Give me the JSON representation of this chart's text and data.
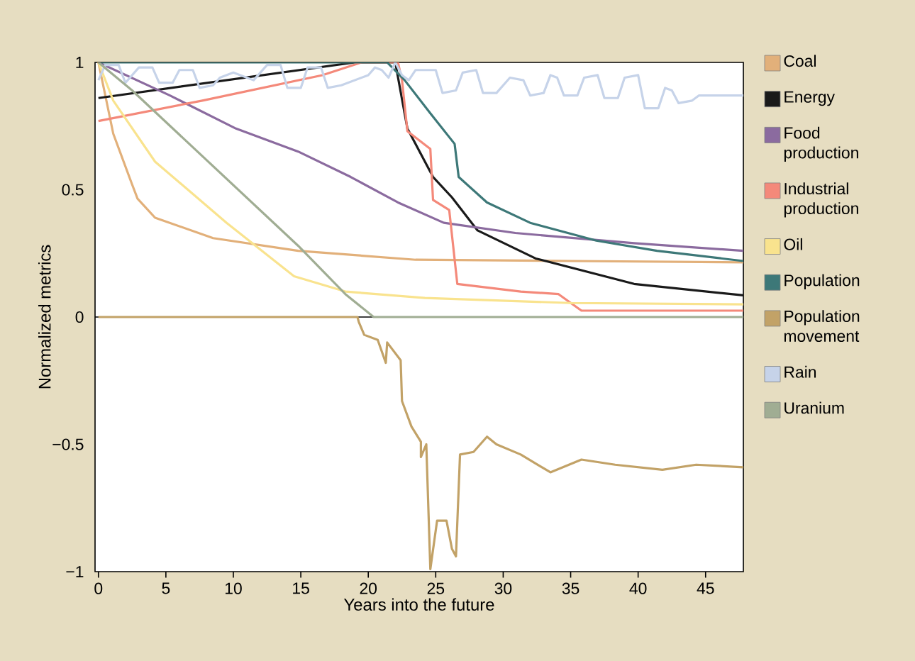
{
  "chart_data": {
    "type": "line",
    "xlabel": "Years into the future",
    "ylabel": "Normalized metrics",
    "xlim": [
      -0.25,
      47.8
    ],
    "ylim": [
      -1,
      1
    ],
    "xticks": [
      0,
      5,
      10,
      15,
      20,
      25,
      30,
      35,
      40,
      45
    ],
    "yticks": [
      {
        "value": -1,
        "label": "−1"
      },
      {
        "value": -0.5,
        "label": "−0.5"
      },
      0,
      0.5,
      1
    ],
    "grid": false,
    "legend": "right",
    "marker": "none",
    "line_style": "solid",
    "ref_lines": [
      {
        "axis": "y",
        "value": 0,
        "color": "#000000"
      }
    ],
    "series": [
      {
        "name": "Coal",
        "color": "#e2b07a",
        "x": [
          0,
          1.1,
          2.5,
          2.9,
          4.2,
          8.5,
          14.8,
          23.5,
          35,
          47.8
        ],
        "values": [
          1,
          0.72,
          0.52,
          0.465,
          0.39,
          0.31,
          0.26,
          0.225,
          0.22,
          0.215
        ]
      },
      {
        "name": "Energy",
        "color": "#1a1a1a",
        "x": [
          0,
          19,
          22,
          22.9,
          24.8,
          26.2,
          28.1,
          32.4,
          39.7,
          47.8
        ],
        "values": [
          0.86,
          1,
          1,
          0.74,
          0.55,
          0.47,
          0.34,
          0.23,
          0.13,
          0.085
        ]
      },
      {
        "name": "Food production",
        "color": "#8b6b9f",
        "x": [
          0,
          5.3,
          10.2,
          14.8,
          18.7,
          22.2,
          25.6,
          30.9,
          39.7,
          47.8
        ],
        "values": [
          1,
          0.87,
          0.74,
          0.65,
          0.55,
          0.45,
          0.37,
          0.33,
          0.29,
          0.26
        ]
      },
      {
        "name": "Industrial production",
        "color": "#f4897a",
        "x": [
          0,
          7.7,
          16.6,
          19.5,
          22.2,
          22.5,
          22.9,
          24.6,
          24.8,
          26,
          26.6,
          31.3,
          34.1,
          35.8,
          47.8
        ],
        "values": [
          0.77,
          0.85,
          0.95,
          1,
          1,
          0.93,
          0.73,
          0.66,
          0.46,
          0.42,
          0.13,
          0.1,
          0.09,
          0.025,
          0.025
        ]
      },
      {
        "name": "Oil",
        "color": "#f9e38e",
        "x": [
          0,
          1.1,
          4.2,
          9.5,
          14.5,
          18.3,
          24.2,
          35,
          47.8
        ],
        "values": [
          1,
          0.85,
          0.61,
          0.37,
          0.16,
          0.1,
          0.075,
          0.055,
          0.05
        ]
      },
      {
        "name": "Population",
        "color": "#3d7878",
        "x": [
          0,
          21.4,
          22.7,
          24.6,
          26.4,
          26.7,
          28.8,
          32,
          36.9,
          41.4,
          47.8
        ],
        "values": [
          1,
          1,
          0.93,
          0.8,
          0.68,
          0.55,
          0.45,
          0.37,
          0.3,
          0.26,
          0.22
        ]
      },
      {
        "name": "Population movement",
        "color": "#c2a267",
        "x": [
          0,
          19.2,
          19.3,
          19.7,
          20.7,
          21.3,
          21.4,
          22.4,
          22.5,
          23.2,
          23.9,
          23.9,
          24.3,
          24.6,
          25.1,
          25.8,
          26.2,
          26.5,
          26.8,
          27.8,
          28.8,
          29.5,
          31.3,
          33.5,
          35.8,
          38.3,
          41.8,
          44.3,
          47.8
        ],
        "values": [
          0,
          0,
          -0.02,
          -0.07,
          -0.09,
          -0.18,
          -0.1,
          -0.17,
          -0.33,
          -0.43,
          -0.49,
          -0.55,
          -0.5,
          -0.99,
          -0.8,
          -0.8,
          -0.91,
          -0.94,
          -0.54,
          -0.53,
          -0.47,
          -0.5,
          -0.54,
          -0.61,
          -0.56,
          -0.58,
          -0.6,
          -0.58,
          -0.59
        ]
      },
      {
        "name": "Rain",
        "color": "#c6d3e9",
        "x": [
          0,
          0.5,
          1.5,
          2,
          3,
          4,
          4.5,
          5.5,
          6,
          7,
          7.5,
          8.5,
          9,
          10,
          11.5,
          12.5,
          13.5,
          14,
          15,
          15.5,
          16.5,
          17,
          18,
          19,
          20,
          20.5,
          21,
          21.5,
          22,
          22.5,
          23,
          23.5,
          25,
          25.5,
          26.5,
          27,
          28,
          28.5,
          29.5,
          30.5,
          31.5,
          32,
          33,
          33.5,
          34,
          34.5,
          35.5,
          36,
          37,
          37.5,
          38.5,
          39,
          40,
          40.5,
          41.5,
          42,
          42.5,
          43,
          44,
          44.5,
          47.8
        ],
        "values": [
          0.93,
          0.99,
          0.99,
          0.92,
          0.98,
          0.98,
          0.92,
          0.92,
          0.97,
          0.97,
          0.9,
          0.91,
          0.94,
          0.96,
          0.93,
          0.99,
          0.99,
          0.9,
          0.9,
          0.98,
          0.98,
          0.9,
          0.91,
          0.93,
          0.95,
          0.98,
          0.97,
          0.94,
          1,
          0.95,
          0.93,
          0.97,
          0.97,
          0.88,
          0.89,
          0.96,
          0.97,
          0.88,
          0.88,
          0.94,
          0.93,
          0.87,
          0.88,
          0.95,
          0.94,
          0.87,
          0.87,
          0.94,
          0.95,
          0.86,
          0.86,
          0.94,
          0.95,
          0.82,
          0.82,
          0.9,
          0.89,
          0.84,
          0.85,
          0.87,
          0.87
        ]
      },
      {
        "name": "Uranium",
        "color": "#a0ad93",
        "x": [
          0,
          2.5,
          14.8,
          18.3,
          20.4,
          47.8
        ],
        "values": [
          1,
          0.89,
          0.28,
          0.09,
          0,
          0
        ]
      }
    ]
  }
}
